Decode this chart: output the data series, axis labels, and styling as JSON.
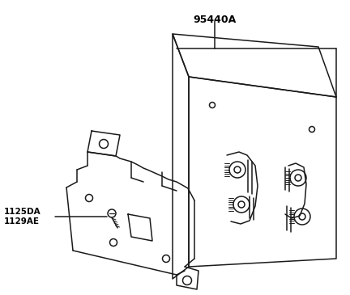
{
  "background_color": "#ffffff",
  "label_95440A": "95440A",
  "label_1125DA": "1125DA",
  "label_1129AE": "1129AE",
  "line_color": "#1a1a1a",
  "text_color": "#000000",
  "fig_width": 4.32,
  "fig_height": 3.65,
  "dpi": 100
}
